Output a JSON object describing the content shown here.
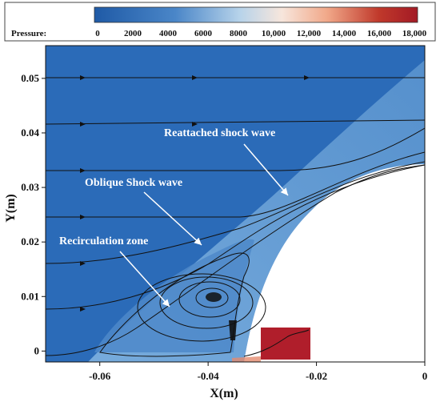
{
  "colorbar": {
    "title": "Pressure:",
    "ticks": [
      "0",
      "2000",
      "4000",
      "6000",
      "8000",
      "10,000",
      "12,000",
      "14,000",
      "16,000",
      "18,000"
    ],
    "range": [
      0,
      18000
    ],
    "colors": [
      "#1f5aa6",
      "#4a86c8",
      "#b7d3ea",
      "#f7e6dc",
      "#f1a889",
      "#c0392b",
      "#a31a25"
    ]
  },
  "axes": {
    "xlabel": "X(m)",
    "ylabel": "Y(m)",
    "xticks": [
      "-0.06",
      "-0.04",
      "-0.02",
      "0"
    ],
    "yticks": [
      "0",
      "0.01",
      "0.02",
      "0.03",
      "0.04",
      "0.05"
    ],
    "xlim": [
      -0.07,
      0
    ],
    "ylim": [
      -0.002,
      0.056
    ]
  },
  "annotations": {
    "reattached": "Reattached shock wave",
    "oblique": "Oblique Shock wave",
    "recirculation": "Recirculation zone"
  },
  "colors": {
    "background_field": "#2b6bb8",
    "shock_layer": "#6fa4d8",
    "body": "#ffffff",
    "stagnation": "#b01e2b",
    "streamline": "#111111"
  }
}
